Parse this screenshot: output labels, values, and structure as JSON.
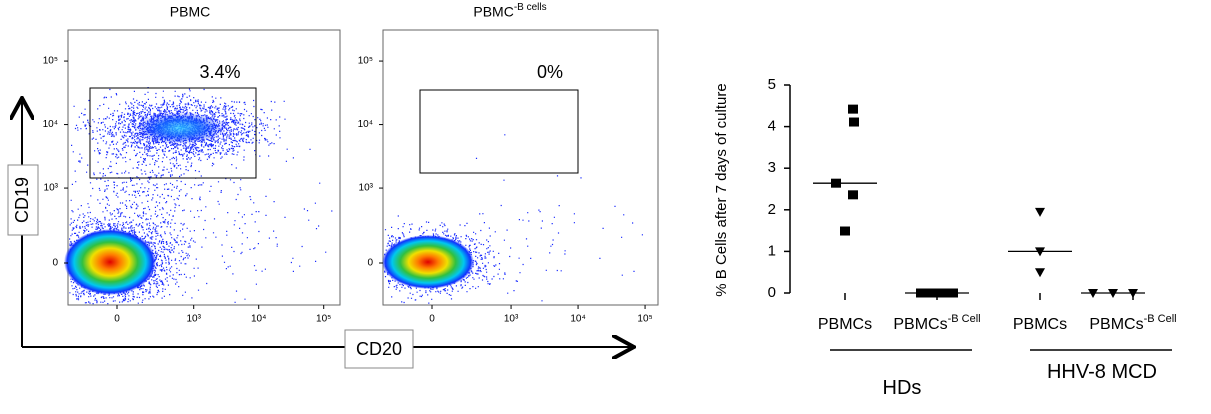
{
  "chart_data": [
    {
      "type": "flow",
      "title": "PBMC",
      "gate_label": "3.4%",
      "ylabel": "CD19",
      "xlabel": "CD20",
      "xticks": [
        0,
        {
          "value": 1000,
          "label": "10³"
        },
        {
          "value": 10000,
          "label": "10⁴"
        },
        {
          "value": 100000,
          "label": "10⁵"
        }
      ],
      "yticks": [
        0,
        {
          "value": 1000,
          "label": "10³"
        },
        {
          "value": 10000,
          "label": "10⁴"
        },
        {
          "value": 100000,
          "label": "10⁵"
        }
      ]
    },
    {
      "type": "flow",
      "title": "PBMC-B cells",
      "gate_label": "0%",
      "xticks": [
        0,
        {
          "value": 1000,
          "label": "10³"
        },
        {
          "value": 10000,
          "label": "10⁴"
        },
        {
          "value": 100000,
          "label": "10⁵"
        }
      ],
      "yticks": [
        0,
        {
          "value": 1000,
          "label": "10³"
        },
        {
          "value": 10000,
          "label": "10⁴"
        },
        {
          "value": 100000,
          "label": "10⁵"
        }
      ]
    },
    {
      "type": "dotplot",
      "ylabel": "% B Cells  after 7 days of culture",
      "categories": [
        "PBMCs",
        "PBMCs-B Cell",
        "PBMCs",
        "PBMCs-B Cell"
      ],
      "points": [
        [
          4.42,
          4.11,
          2.64,
          2.36,
          1.49
        ],
        [
          0,
          0,
          0,
          0,
          0
        ],
        [
          1.95,
          1.0,
          0.5
        ],
        [
          0,
          0,
          0
        ]
      ],
      "medians": [
        2.64,
        0,
        1.0,
        0
      ],
      "markers": [
        "square",
        "square",
        "triangle-down",
        "triangle-down"
      ],
      "color": "#000000",
      "groups": [
        "HDs",
        "HHV-8 MCD"
      ],
      "ylim": [
        0,
        5
      ],
      "yticks": [
        0,
        1,
        2,
        3,
        4,
        5
      ]
    }
  ]
}
